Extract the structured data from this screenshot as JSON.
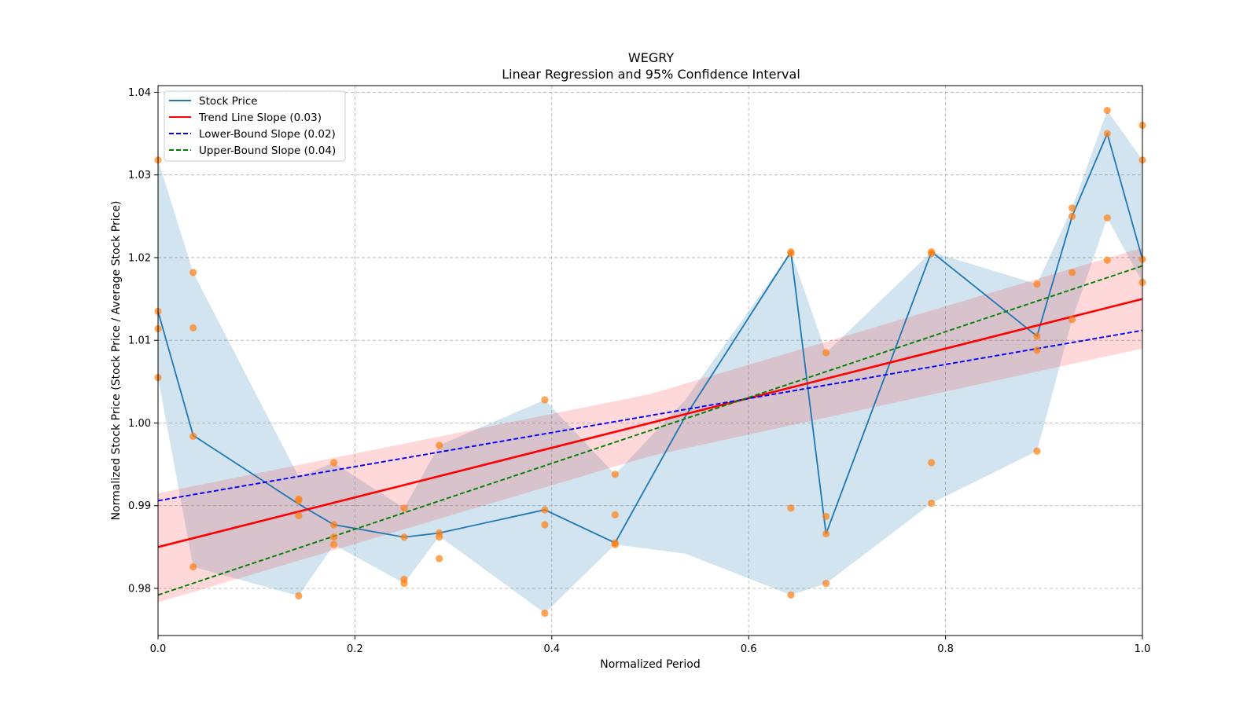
{
  "chart_data": {
    "type": "line",
    "title": "WEGRY",
    "subtitle": "Linear Regression and 95% Confidence Interval",
    "xlabel": "Normalized Period",
    "ylabel": "Normalized Stock Price (Stock Price / Average Stock Price)",
    "xlim": [
      0,
      1.0
    ],
    "ylim": [
      0.9743,
      1.0408
    ],
    "xticks": [
      0.0,
      0.2,
      0.4,
      0.6,
      0.8,
      1.0
    ],
    "xtick_labels": [
      "0.0",
      "0.2",
      "0.4",
      "0.6",
      "0.8",
      "1.0"
    ],
    "yticks": [
      0.98,
      0.99,
      1.0,
      1.01,
      1.02,
      1.03,
      1.04
    ],
    "ytick_labels": [
      "0.98",
      "0.99",
      "1.00",
      "1.01",
      "1.02",
      "1.03",
      "1.04"
    ],
    "grid": true,
    "legend_position": "top-left",
    "colors": {
      "stock": "#1f77b4",
      "stock_band": "#1f77b4",
      "scatter": "#ff7f0e",
      "trend": "#ff0000",
      "trend_band": "#ff0000",
      "lower": "#0000ff",
      "upper": "#008000",
      "grid": "#b0b0b0"
    },
    "legend": [
      {
        "label": "Stock Price",
        "color": "#1f77b4",
        "style": "solid"
      },
      {
        "label": "Trend Line Slope (0.03)",
        "color": "#ff0000",
        "style": "solid"
      },
      {
        "label": "Lower-Bound Slope (0.02)",
        "color": "#0000ff",
        "style": "dashed"
      },
      {
        "label": "Upper-Bound Slope (0.04)",
        "color": "#008000",
        "style": "dashed"
      }
    ],
    "stock_price": {
      "x": [
        0.0,
        0.0357,
        0.1429,
        0.1786,
        0.25,
        0.2857,
        0.3929,
        0.4643,
        0.5357,
        0.6429,
        0.6786,
        0.7857,
        0.8929,
        0.9286,
        0.9643,
        1.0
      ],
      "y": [
        1.0135,
        0.9985,
        0.9902,
        0.9877,
        0.9862,
        0.9867,
        0.9895,
        0.9855,
        1.0008,
        1.0207,
        0.9866,
        1.0207,
        1.0105,
        1.025,
        1.035,
        1.0198
      ],
      "band_upper": [
        1.0318,
        1.0182,
        0.9935,
        0.9952,
        0.9897,
        0.9973,
        1.0028,
        0.9938,
        1.0028,
        1.0207,
        1.0085,
        1.0207,
        1.0168,
        1.026,
        1.0378,
        1.0318
      ],
      "band_lower": [
        1.0055,
        0.9826,
        0.9791,
        0.9853,
        0.9806,
        0.9863,
        0.977,
        0.9853,
        0.9842,
        0.9792,
        0.9806,
        0.9903,
        0.9966,
        1.0125,
        1.0248,
        1.017
      ]
    },
    "scatter_points": [
      {
        "x": 0.0,
        "y": 1.0318
      },
      {
        "x": 0.0,
        "y": 1.0135
      },
      {
        "x": 0.0,
        "y": 1.0114
      },
      {
        "x": 0.0,
        "y": 1.0055
      },
      {
        "x": 0.0357,
        "y": 1.0182
      },
      {
        "x": 0.0357,
        "y": 1.0115
      },
      {
        "x": 0.0357,
        "y": 0.9984
      },
      {
        "x": 0.0357,
        "y": 0.9826
      },
      {
        "x": 0.1429,
        "y": 0.9908
      },
      {
        "x": 0.1429,
        "y": 0.9906
      },
      {
        "x": 0.1429,
        "y": 0.9888
      },
      {
        "x": 0.1429,
        "y": 0.9791
      },
      {
        "x": 0.1786,
        "y": 0.9952
      },
      {
        "x": 0.1786,
        "y": 0.9877
      },
      {
        "x": 0.1786,
        "y": 0.9862
      },
      {
        "x": 0.1786,
        "y": 0.9853
      },
      {
        "x": 0.25,
        "y": 0.9897
      },
      {
        "x": 0.25,
        "y": 0.9862
      },
      {
        "x": 0.25,
        "y": 0.9811
      },
      {
        "x": 0.25,
        "y": 0.9806
      },
      {
        "x": 0.2857,
        "y": 0.9973
      },
      {
        "x": 0.2857,
        "y": 0.9867
      },
      {
        "x": 0.2857,
        "y": 0.9862
      },
      {
        "x": 0.2857,
        "y": 0.9836
      },
      {
        "x": 0.3929,
        "y": 1.0028
      },
      {
        "x": 0.3929,
        "y": 0.9895
      },
      {
        "x": 0.3929,
        "y": 0.9877
      },
      {
        "x": 0.3929,
        "y": 0.977
      },
      {
        "x": 0.4643,
        "y": 0.9938
      },
      {
        "x": 0.4643,
        "y": 0.9889
      },
      {
        "x": 0.4643,
        "y": 0.9855
      },
      {
        "x": 0.4643,
        "y": 0.9853
      },
      {
        "x": 0.6429,
        "y": 1.0207
      },
      {
        "x": 0.6429,
        "y": 1.0205
      },
      {
        "x": 0.6429,
        "y": 0.9897
      },
      {
        "x": 0.6429,
        "y": 0.9792
      },
      {
        "x": 0.6786,
        "y": 1.0085
      },
      {
        "x": 0.6786,
        "y": 0.9887
      },
      {
        "x": 0.6786,
        "y": 0.9866
      },
      {
        "x": 0.6786,
        "y": 0.9806
      },
      {
        "x": 0.7857,
        "y": 1.0207
      },
      {
        "x": 0.7857,
        "y": 1.0205
      },
      {
        "x": 0.7857,
        "y": 0.9952
      },
      {
        "x": 0.7857,
        "y": 0.9903
      },
      {
        "x": 0.8929,
        "y": 1.0168
      },
      {
        "x": 0.8929,
        "y": 1.0105
      },
      {
        "x": 0.8929,
        "y": 1.0088
      },
      {
        "x": 0.8929,
        "y": 0.9966
      },
      {
        "x": 0.9286,
        "y": 1.026
      },
      {
        "x": 0.9286,
        "y": 1.025
      },
      {
        "x": 0.9286,
        "y": 1.0182
      },
      {
        "x": 0.9286,
        "y": 1.0125
      },
      {
        "x": 0.9643,
        "y": 1.0378
      },
      {
        "x": 0.9643,
        "y": 1.035
      },
      {
        "x": 0.9643,
        "y": 1.0248
      },
      {
        "x": 0.9643,
        "y": 1.0197
      },
      {
        "x": 1.0,
        "y": 1.036
      },
      {
        "x": 1.0,
        "y": 1.0318
      },
      {
        "x": 1.0,
        "y": 1.0198
      },
      {
        "x": 1.0,
        "y": 1.017
      }
    ],
    "trend_line": {
      "x": [
        0.0,
        1.0
      ],
      "y": [
        0.985,
        1.015
      ]
    },
    "trend_band": {
      "x": [
        0.0,
        0.5,
        1.0
      ],
      "upper": [
        0.9915,
        1.0035,
        1.0212
      ],
      "lower": [
        0.9783,
        0.996,
        1.009
      ]
    },
    "lower_bound_line": {
      "x": [
        0.0,
        1.0
      ],
      "y": [
        0.9906,
        1.0112
      ]
    },
    "upper_bound_line": {
      "x": [
        0.0,
        1.0
      ],
      "y": [
        0.9792,
        1.019
      ]
    }
  }
}
